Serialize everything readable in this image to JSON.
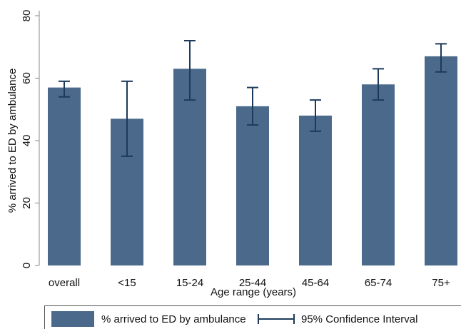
{
  "chart_data": {
    "type": "bar",
    "x_label": "Age range (years)",
    "y_label": "% arrived to ED by ambulance",
    "categories": [
      "overall",
      "<15",
      "15-24",
      "25-44",
      "45-64",
      "65-74",
      "75+"
    ],
    "series": [
      {
        "name": "% arrived to ED by ambulance",
        "color": "#4b6a8b",
        "values": [
          57,
          47,
          63,
          51,
          48,
          58,
          67
        ]
      }
    ],
    "error_bars": {
      "name": "95% Confidence Interval",
      "color": "#1d3a5a",
      "low": [
        54,
        35,
        53,
        45,
        43,
        53,
        62
      ],
      "high": [
        59,
        59,
        72,
        57,
        53,
        63,
        71
      ]
    },
    "ylim": [
      0,
      80
    ],
    "yticks": [
      0,
      20,
      40,
      60,
      80
    ]
  }
}
